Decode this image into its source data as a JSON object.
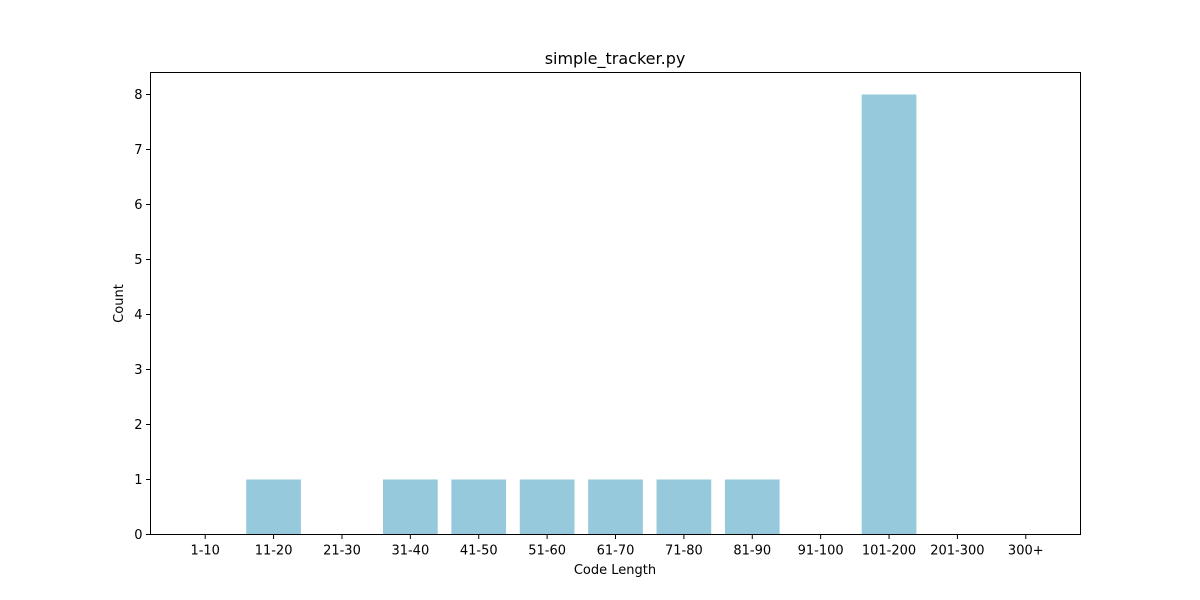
{
  "chart_data": {
    "type": "bar",
    "title": "simple_tracker.py",
    "xlabel": "Code Length",
    "ylabel": "Count",
    "categories": [
      "1-10",
      "11-20",
      "21-30",
      "31-40",
      "41-50",
      "51-60",
      "61-70",
      "71-80",
      "81-90",
      "91-100",
      "101-200",
      "201-300",
      "300+"
    ],
    "values": [
      0,
      1,
      0,
      1,
      1,
      1,
      1,
      1,
      1,
      0,
      8,
      0,
      0
    ],
    "ylim": [
      0,
      8.4
    ],
    "yticks": [
      0,
      1,
      2,
      3,
      4,
      5,
      6,
      7,
      8
    ],
    "grid": false,
    "bar_color": "#96c9dc"
  }
}
